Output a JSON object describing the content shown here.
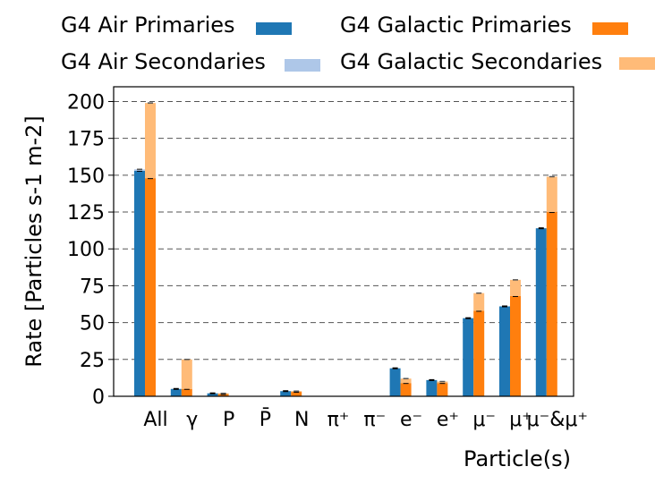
{
  "chart_data": {
    "type": "bar",
    "ylabel": "Rate [Particles s-1 m-2]",
    "xlabel": "Particle(s)",
    "ylim": [
      0,
      210
    ],
    "yticks": [
      0,
      25,
      50,
      75,
      100,
      125,
      150,
      175,
      200
    ],
    "grid": "horizontal dashed",
    "legend_position": "top",
    "categories": [
      "All",
      "γ",
      "P",
      "P̄",
      "N",
      "π⁺",
      "π⁻",
      "e⁻",
      "e⁺",
      "μ⁻",
      "μ⁺",
      "μ⁻&μ⁺"
    ],
    "series": [
      {
        "name": "G4 Air Primaries",
        "color": "#1f77b4",
        "values": [
          153,
          5,
          2,
          0,
          3.5,
          0,
          0,
          19,
          11,
          53,
          61,
          114
        ]
      },
      {
        "name": "G4 Air Secondaries",
        "color": "#aec7e8",
        "values": [
          1,
          0,
          0,
          0,
          0,
          0,
          0,
          0,
          0,
          0,
          0,
          0
        ]
      },
      {
        "name": "G4 Galactic Primaries",
        "color": "#ff7f0e",
        "values": [
          148,
          5,
          1.5,
          0,
          3,
          0,
          0,
          9,
          9,
          58,
          68,
          125
        ]
      },
      {
        "name": "G4 Galactic Secondaries",
        "color": "#ffbb78",
        "values": [
          51,
          20,
          0.5,
          0,
          0.5,
          0,
          0,
          3,
          1,
          12,
          11,
          24
        ]
      }
    ]
  }
}
